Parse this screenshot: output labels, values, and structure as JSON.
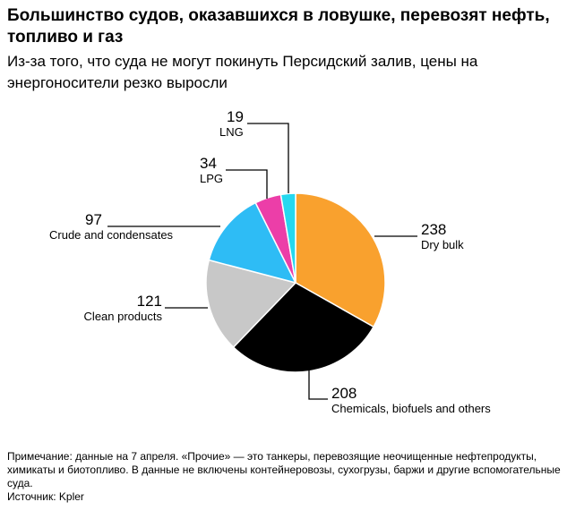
{
  "title": "Большинство судов, оказавшихся в ловушке, перевозят нефть, топливо и газ",
  "subtitle": "Из-за того, что суда не могут покинуть Персидский залив, цены на энергоносители резко выросли",
  "chart_data": {
    "type": "pie",
    "start": "top",
    "direction": "clockwise",
    "slices": [
      {
        "label": "Dry bulk",
        "value": 238,
        "color": "#f9a12e"
      },
      {
        "label": "Chemicals, biofuels and others",
        "value": 208,
        "color": "#000000"
      },
      {
        "label": "Clean products",
        "value": 121,
        "color": "#c8c8c8"
      },
      {
        "label": "Crude and condensates",
        "value": 97,
        "color": "#2ebcf5"
      },
      {
        "label": "LPG",
        "value": 34,
        "color": "#ec3ea8"
      },
      {
        "label": "LNG",
        "value": 19,
        "color": "#25d8ef"
      }
    ]
  },
  "note": "Примечание: данные на 7 апреля. «Прочие» — это танкеры, перевозящие неочищенные нефтепродукты, химикаты и биотопливо. В данные не включены контейнеровозы, сухогрузы, баржи и другие вспомогательные суда.",
  "source": "Источник: Kpler"
}
